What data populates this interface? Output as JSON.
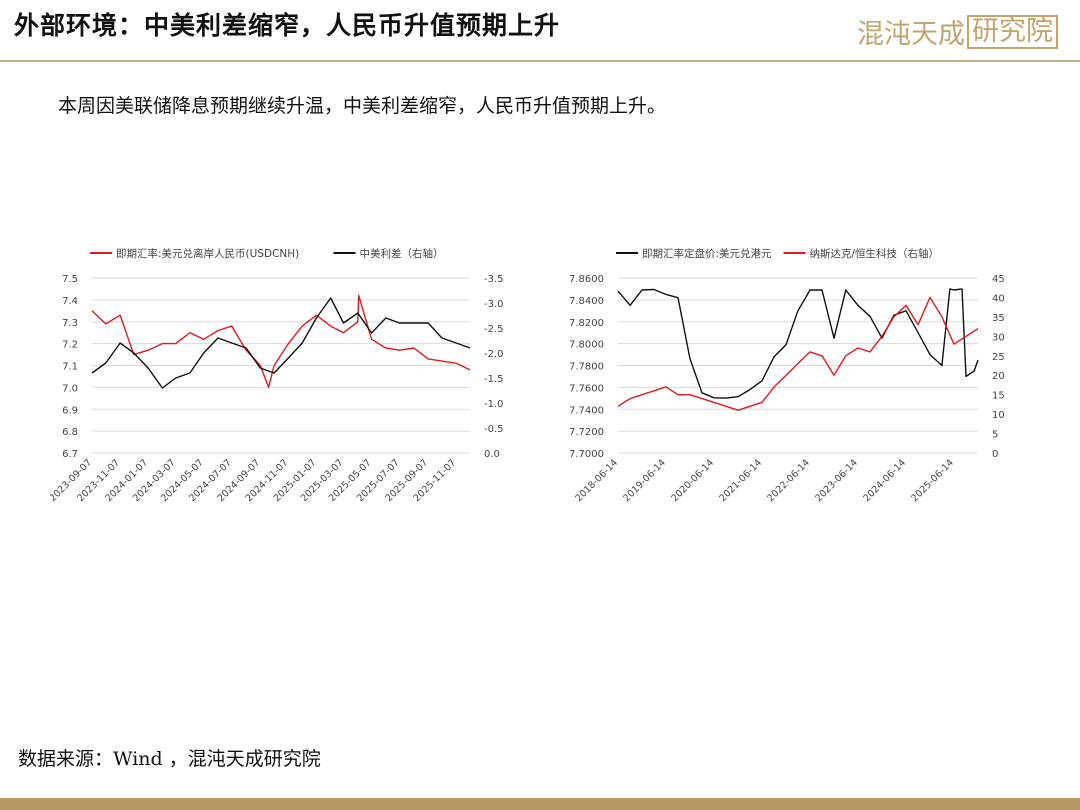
{
  "header": {
    "title": "外部环境：中美利差缩窄，人民币升值预期上升",
    "logo_main": "混沌天成",
    "logo_box": "研究院"
  },
  "subtitle": "本周因美联储降息预期继续升温，中美利差缩窄，人民币升值预期上升。",
  "footer": {
    "source": "数据来源：Wind ，混沌天成研究院"
  },
  "colors": {
    "accent": "#c3a46d",
    "red_series": "#e41a1c",
    "black_series": "#111111",
    "rule": "#c7ae86"
  },
  "chart_data": [
    {
      "type": "line",
      "title": "",
      "series": [
        {
          "name": "即期汇率:美元兑离岸人民币(USDCNH)",
          "axis": "left",
          "color": "#e41a1c",
          "x": [
            "2023-09-07",
            "2023-10-07",
            "2023-11-07",
            "2023-12-07",
            "2024-01-07",
            "2024-02-07",
            "2024-03-07",
            "2024-04-07",
            "2024-05-07",
            "2024-06-07",
            "2024-07-07",
            "2024-08-07",
            "2024-09-07",
            "2024-09-25",
            "2024-10-07",
            "2024-11-07",
            "2024-12-07",
            "2025-01-07",
            "2025-02-07",
            "2025-03-07",
            "2025-04-07",
            "2025-04-09",
            "2025-05-07",
            "2025-06-07",
            "2025-07-07",
            "2025-08-07",
            "2025-09-07",
            "2025-10-07",
            "2025-11-07",
            "2025-12-07"
          ],
          "values": [
            7.35,
            7.29,
            7.33,
            7.15,
            7.17,
            7.2,
            7.2,
            7.25,
            7.22,
            7.26,
            7.28,
            7.17,
            7.1,
            7.0,
            7.1,
            7.2,
            7.28,
            7.33,
            7.28,
            7.25,
            7.3,
            7.42,
            7.22,
            7.18,
            7.17,
            7.18,
            7.13,
            7.12,
            7.11,
            7.08
          ]
        },
        {
          "name": "中美利差（右轴）",
          "axis": "right",
          "color": "#111111",
          "x": [
            "2023-09-07",
            "2023-10-07",
            "2023-11-07",
            "2023-12-07",
            "2024-01-07",
            "2024-02-07",
            "2024-03-07",
            "2024-04-07",
            "2024-05-07",
            "2024-06-07",
            "2024-07-07",
            "2024-08-07",
            "2024-09-07",
            "2024-10-07",
            "2024-11-07",
            "2024-12-07",
            "2025-01-07",
            "2025-02-07",
            "2025-03-07",
            "2025-04-07",
            "2025-05-07",
            "2025-06-07",
            "2025-07-07",
            "2025-08-07",
            "2025-09-07",
            "2025-10-07",
            "2025-11-07",
            "2025-12-07"
          ],
          "values": [
            -1.6,
            -1.8,
            -2.2,
            -2.0,
            -1.7,
            -1.3,
            -1.5,
            -1.6,
            -2.0,
            -2.3,
            -2.2,
            -2.1,
            -1.7,
            -1.6,
            -1.9,
            -2.2,
            -2.7,
            -3.1,
            -2.6,
            -2.8,
            -2.4,
            -2.7,
            -2.6,
            -2.6,
            -2.6,
            -2.3,
            -2.2,
            -2.1
          ]
        }
      ],
      "y_left": {
        "min": 6.7,
        "max": 7.5,
        "ticks": [
          "6.7",
          "6.8",
          "6.9",
          "7.0",
          "7.1",
          "7.2",
          "7.3",
          "7.4",
          "7.5"
        ]
      },
      "y_right": {
        "min": 0.0,
        "max": -3.5,
        "ticks": [
          "0.0",
          "-0.5",
          "-1.0",
          "-1.5",
          "-2.0",
          "-2.5",
          "-3.0",
          "-3.5"
        ]
      },
      "x_ticks": [
        "2023-09-07",
        "2023-11-07",
        "2024-01-07",
        "2024-03-07",
        "2024-05-07",
        "2024-07-07",
        "2024-09-07",
        "2024-11-07",
        "2025-01-07",
        "2025-03-07",
        "2025-05-07",
        "2025-07-07",
        "2025-09-07",
        "2025-11-07"
      ],
      "grid": true,
      "legend": "top"
    },
    {
      "type": "line",
      "title": "",
      "series": [
        {
          "name": "即期汇率定盘价:美元兑港元",
          "axis": "left",
          "color": "#111111",
          "x": [
            "2018-06-14",
            "2018-09-14",
            "2018-12-14",
            "2019-03-14",
            "2019-06-14",
            "2019-09-14",
            "2019-12-14",
            "2020-03-14",
            "2020-06-14",
            "2020-09-14",
            "2020-12-14",
            "2021-03-14",
            "2021-06-14",
            "2021-09-14",
            "2021-12-14",
            "2022-03-14",
            "2022-06-14",
            "2022-09-14",
            "2022-12-14",
            "2023-03-14",
            "2023-06-14",
            "2023-09-14",
            "2023-12-14",
            "2024-03-14",
            "2024-06-14",
            "2024-09-14",
            "2024-12-14",
            "2025-03-14",
            "2025-05-14",
            "2025-06-14",
            "2025-08-14",
            "2025-09-14",
            "2025-11-14",
            "2025-12-14"
          ],
          "values": [
            7.848,
            7.835,
            7.849,
            7.8495,
            7.845,
            7.842,
            7.786,
            7.755,
            7.7505,
            7.7502,
            7.7515,
            7.758,
            7.766,
            7.788,
            7.799,
            7.83,
            7.849,
            7.849,
            7.805,
            7.849,
            7.835,
            7.825,
            7.805,
            7.826,
            7.83,
            7.81,
            7.79,
            7.78,
            7.85,
            7.849,
            7.85,
            7.77,
            7.775,
            7.785
          ]
        },
        {
          "name": "纳斯达克/恒生科技（右轴）",
          "axis": "right",
          "color": "#e41a1c",
          "x": [
            "2018-06-14",
            "2018-09-14",
            "2018-12-14",
            "2019-03-14",
            "2019-06-14",
            "2019-09-14",
            "2019-12-14",
            "2020-03-14",
            "2020-06-14",
            "2020-09-14",
            "2020-12-14",
            "2021-03-14",
            "2021-06-14",
            "2021-09-14",
            "2021-12-14",
            "2022-03-14",
            "2022-06-14",
            "2022-09-14",
            "2022-12-14",
            "2023-03-14",
            "2023-06-14",
            "2023-09-14",
            "2023-12-14",
            "2024-03-14",
            "2024-06-14",
            "2024-09-14",
            "2024-12-14",
            "2025-03-14",
            "2025-06-14",
            "2025-09-14",
            "2025-12-14"
          ],
          "values": [
            12,
            14,
            15,
            16,
            17,
            15,
            15,
            14,
            13,
            12,
            11,
            12,
            13,
            17,
            20,
            23,
            26,
            25,
            20,
            25,
            27,
            26,
            30,
            35,
            38,
            33,
            40,
            35,
            28,
            30,
            32
          ]
        }
      ],
      "y_left": {
        "min": 7.7,
        "max": 7.86,
        "ticks": [
          "7.7000",
          "7.7200",
          "7.7400",
          "7.7600",
          "7.7800",
          "7.8000",
          "7.8200",
          "7.8400",
          "7.8600"
        ]
      },
      "y_right": {
        "min": 0,
        "max": 45,
        "ticks": [
          "0",
          "5",
          "10",
          "15",
          "20",
          "25",
          "30",
          "35",
          "40",
          "45"
        ]
      },
      "x_ticks": [
        "2018-06-14",
        "2019-06-14",
        "2020-06-14",
        "2021-06-14",
        "2022-06-14",
        "2023-06-14",
        "2024-06-14",
        "2025-06-14"
      ],
      "grid": true,
      "legend": "top"
    }
  ]
}
